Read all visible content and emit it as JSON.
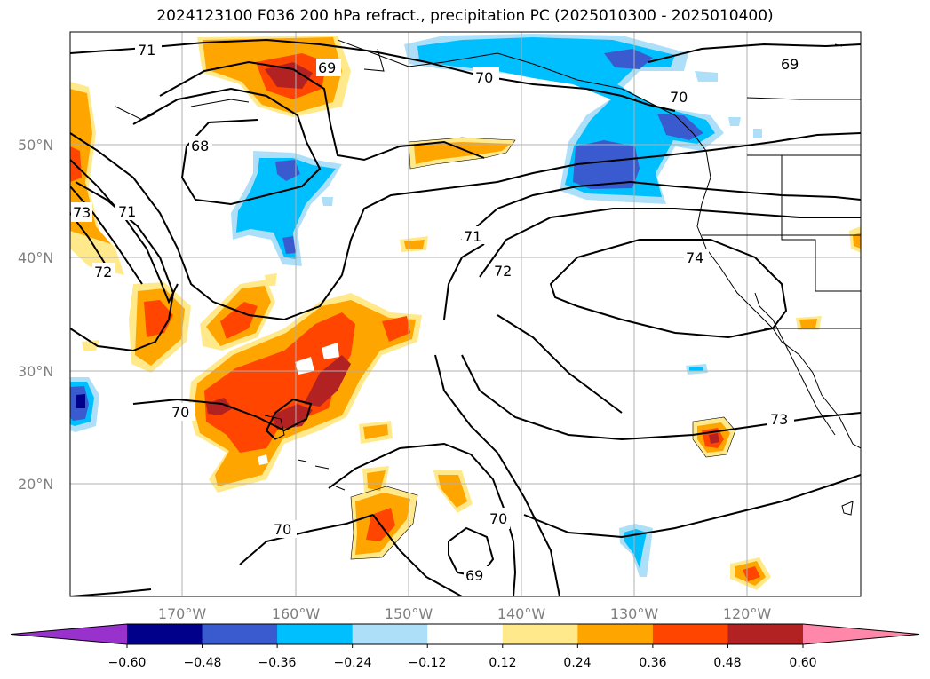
{
  "title": "2024123100 F036 200 hPa refract., precipitation PC (2025010300 - 2025010400)",
  "lat_labels": [
    "50°N",
    "40°N",
    "30°N",
    "20°N"
  ],
  "lon_labels": [
    "170°W",
    "160°W",
    "150°W",
    "140°W",
    "130°W",
    "120°W"
  ],
  "colorbar": {
    "ticks": [
      "−0.60",
      "−0.48",
      "−0.36",
      "−0.24",
      "−0.12",
      "0.12",
      "0.24",
      "0.36",
      "0.48",
      "0.60"
    ],
    "colors": [
      "#9932CC",
      "#00008B",
      "#3A5BCF",
      "#00BFFF",
      "#ADE0F8",
      "#FFFFFF",
      "#FFE98A",
      "#FFA500",
      "#FF4500",
      "#B22222",
      "#FF88AA"
    ]
  },
  "contour_labels": [
    "71",
    "69",
    "70",
    "68",
    "73",
    "71",
    "72",
    "71",
    "72",
    "74",
    "70",
    "70",
    "69",
    "70",
    "70",
    "73",
    "69"
  ]
}
